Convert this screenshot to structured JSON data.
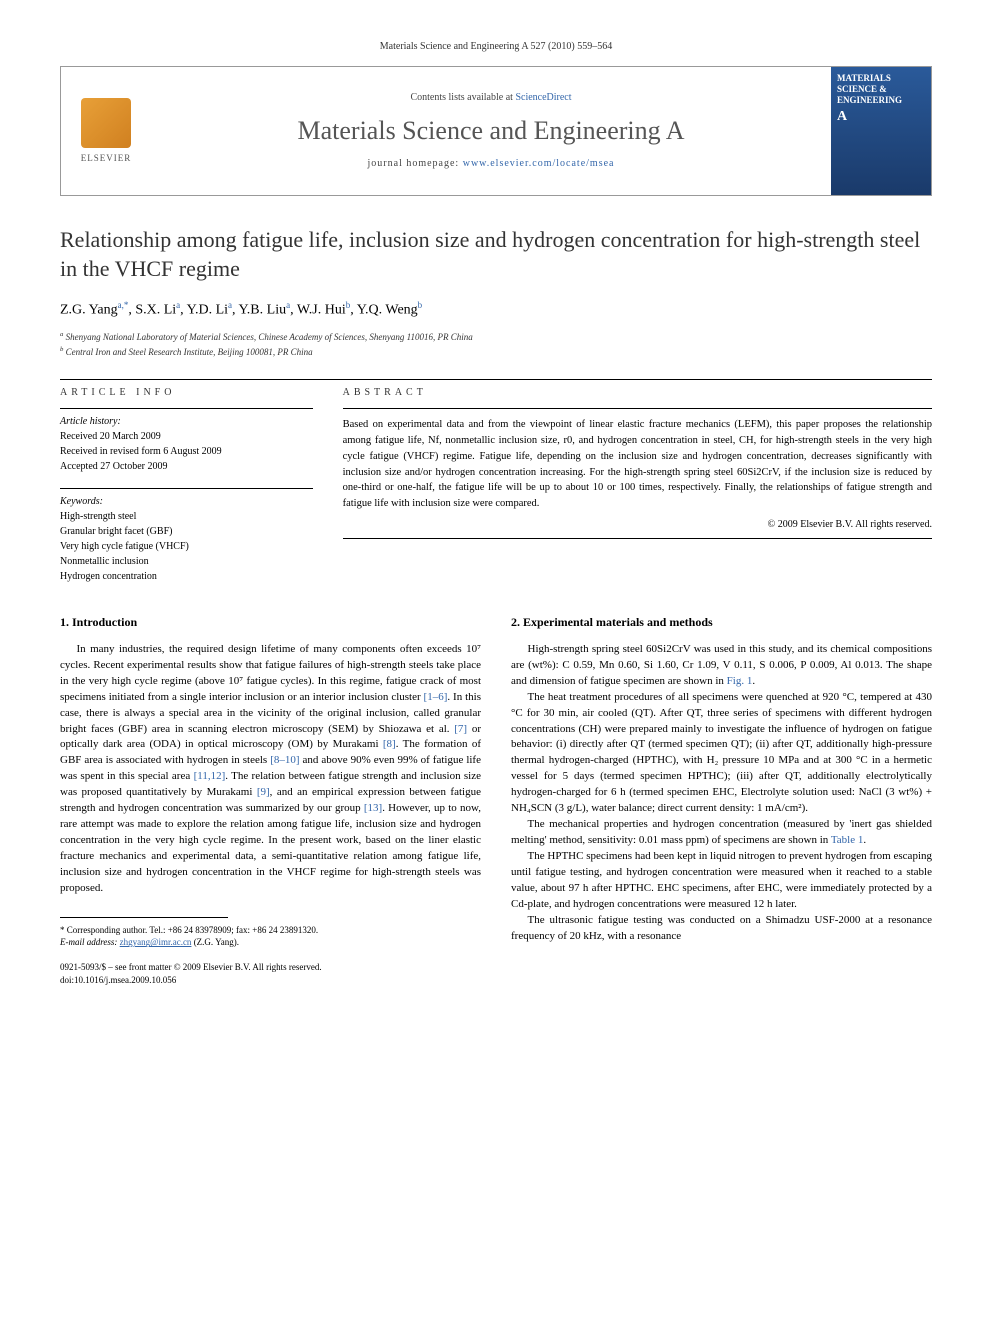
{
  "page_header": "Materials Science and Engineering A 527 (2010) 559–564",
  "banner": {
    "contents_prefix": "Contents lists available at ",
    "contents_link": "ScienceDirect",
    "journal_name": "Materials Science and Engineering A",
    "homepage_prefix": "journal homepage: ",
    "homepage_url": "www.elsevier.com/locate/msea",
    "publisher": "ELSEVIER",
    "cover_title": "MATERIALS SCIENCE & ENGINEERING",
    "cover_sub": "A"
  },
  "title": "Relationship among fatigue life, inclusion size and hydrogen concentration for high-strength steel in the VHCF regime",
  "authors_html": "Z.G. Yang<sup>a,*</sup>, S.X. Li<sup>a</sup>, Y.D. Li<sup>a</sup>, Y.B. Liu<sup>a</sup>, W.J. Hui<sup>b</sup>, Y.Q. Weng<sup>b</sup>",
  "authors": [
    {
      "name": "Z.G. Yang",
      "aff": "a",
      "corr": true
    },
    {
      "name": "S.X. Li",
      "aff": "a"
    },
    {
      "name": "Y.D. Li",
      "aff": "a"
    },
    {
      "name": "Y.B. Liu",
      "aff": "a"
    },
    {
      "name": "W.J. Hui",
      "aff": "b"
    },
    {
      "name": "Y.Q. Weng",
      "aff": "b"
    }
  ],
  "affiliations": {
    "a": "Shenyang National Laboratory of Material Sciences, Chinese Academy of Sciences, Shenyang 110016, PR China",
    "b": "Central Iron and Steel Research Institute, Beijing 100081, PR China"
  },
  "article_info": {
    "heading": "ARTICLE INFO",
    "history_label": "Article history:",
    "history": [
      "Received 20 March 2009",
      "Received in revised form 6 August 2009",
      "Accepted 27 October 2009"
    ],
    "keywords_label": "Keywords:",
    "keywords": [
      "High-strength steel",
      "Granular bright facet (GBF)",
      "Very high cycle fatigue (VHCF)",
      "Nonmetallic inclusion",
      "Hydrogen concentration"
    ]
  },
  "abstract": {
    "heading": "ABSTRACT",
    "text": "Based on experimental data and from the viewpoint of linear elastic fracture mechanics (LEFM), this paper proposes the relationship among fatigue life, Nf, nonmetallic inclusion size, r0, and hydrogen concentration in steel, CH, for high-strength steels in the very high cycle fatigue (VHCF) regime. Fatigue life, depending on the inclusion size and hydrogen concentration, decreases significantly with inclusion size and/or hydrogen concentration increasing. For the high-strength spring steel 60Si2CrV, if the inclusion size is reduced by one-third or one-half, the fatigue life will be up to about 10 or 100 times, respectively. Finally, the relationships of fatigue strength and fatigue life with inclusion size were compared.",
    "copyright": "© 2009 Elsevier B.V. All rights reserved."
  },
  "sections": {
    "intro_heading": "1.  Introduction",
    "intro_p1": "In many industries, the required design lifetime of many components often exceeds 10⁷ cycles. Recent experimental results show that fatigue failures of high-strength steels take place in the very high cycle regime (above 10⁷ fatigue cycles). In this regime, fatigue crack of most specimens initiated from a single interior inclusion or an interior inclusion cluster [1–6]. In this case, there is always a special area in the vicinity of the original inclusion, called granular bright faces (GBF) area in scanning electron microscopy (SEM) by Shiozawa et al. [7] or optically dark area (ODA) in optical microscopy (OM) by Murakami [8]. The formation of GBF area is associated with hydrogen in steels [8–10] and above 90% even 99% of fatigue life was spent in this special area [11,12]. The relation between fatigue strength and inclusion size was proposed quantitatively by Murakami [9], and an empirical expression between fatigue strength and hydrogen concentration was summarized by our group [13]. However, up to now, rare attempt was made to explore the relation among fatigue life, inclusion size and hydrogen concentration in the very high cycle regime. In the present work, based on the liner elastic fracture mechanics and experimental data, a semi-quantitative relation among fatigue life, inclusion size and hydrogen concentration in the VHCF regime for high-strength steels was proposed.",
    "methods_heading": "2.  Experimental materials and methods",
    "methods_p1": "High-strength spring steel 60Si2CrV was used in this study, and its chemical compositions are (wt%): C 0.59, Mn 0.60, Si 1.60, Cr 1.09, V 0.11, S 0.006, P 0.009, Al 0.013. The shape and dimension of fatigue specimen are shown in Fig. 1.",
    "methods_p2": "The heat treatment procedures of all specimens were quenched at 920 °C, tempered at 430 °C for 30 min, air cooled (QT). After QT, three series of specimens with different hydrogen concentrations (CH) were prepared mainly to investigate the influence of hydrogen on fatigue behavior: (i) directly after QT (termed specimen QT); (ii) after QT, additionally high-pressure thermal hydrogen-charged (HPTHC), with H₂ pressure 10 MPa and at 300 °C in a hermetic vessel for 5 days (termed specimen HPTHC); (iii) after QT, additionally electrolytically hydrogen-charged for 6 h (termed specimen EHC, Electrolyte solution used: NaCl (3 wt%) + NH₄SCN (3 g/L), water balance; direct current density: 1 mA/cm²).",
    "methods_p3": "The mechanical properties and hydrogen concentration (measured by 'inert gas shielded melting' method, sensitivity: 0.01 mass ppm) of specimens are shown in Table 1.",
    "methods_p4": "The HPTHC specimens had been kept in liquid nitrogen to prevent hydrogen from escaping until fatigue testing, and hydrogen concentration were measured when it reached to a stable value, about 97 h after HPTHC. EHC specimens, after EHC, were immediately protected by a Cd-plate, and hydrogen concentrations were measured 12 h later.",
    "methods_p5": "The ultrasonic fatigue testing was conducted on a Shimadzu USF-2000 at a resonance frequency of 20 kHz, with a resonance"
  },
  "footnote": {
    "corr_label": "* Corresponding author. Tel.: +86 24 83978909; fax: +86 24 23891320.",
    "email_label": "E-mail address:",
    "email": "zhgyang@imr.ac.cn",
    "email_who": "(Z.G. Yang)."
  },
  "footer": {
    "line1": "0921-5093/$ – see front matter © 2009 Elsevier B.V. All rights reserved.",
    "line2": "doi:10.1016/j.msea.2009.10.056"
  },
  "colors": {
    "link": "#3366aa",
    "text": "#000000",
    "heading": "#333333",
    "cover_bg_top": "#2a5a9a",
    "cover_bg_bottom": "#1a3a6a",
    "elsevier_bg": "#e8a038"
  }
}
